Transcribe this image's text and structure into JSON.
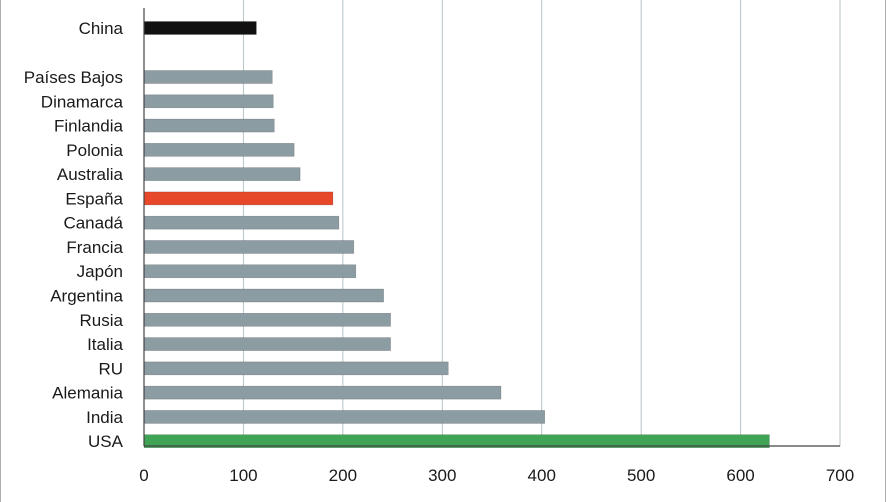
{
  "chart_data": {
    "type": "bar",
    "orientation": "horizontal",
    "title": "",
    "xlabel": "",
    "ylabel": "",
    "xlim": [
      0,
      700
    ],
    "x_ticks": [
      0,
      100,
      200,
      300,
      400,
      500,
      600,
      700
    ],
    "grid": "vertical",
    "legend": "none",
    "categories": [
      "China",
      "Países Bajos",
      "Dinamarca",
      "Finlandia",
      "Polonia",
      "Australia",
      "España",
      "Canadá",
      "Francia",
      "Japón",
      "Argentina",
      "Rusia",
      "Italia",
      "RU",
      "Alemania",
      "India",
      "USA"
    ],
    "values": [
      113,
      129,
      130,
      131,
      151,
      157,
      190,
      196,
      211,
      213,
      241,
      248,
      248,
      306,
      359,
      403,
      629
    ],
    "bar_colors": [
      "#111111",
      "#8c9ca3",
      "#8c9ca3",
      "#8c9ca3",
      "#8c9ca3",
      "#8c9ca3",
      "#e8482a",
      "#8c9ca3",
      "#8c9ca3",
      "#8c9ca3",
      "#8c9ca3",
      "#8c9ca3",
      "#8c9ca3",
      "#8c9ca3",
      "#8c9ca3",
      "#8c9ca3",
      "#3fa455"
    ],
    "gridline_color": "#b7c4c9",
    "axis_color": "#444444"
  }
}
